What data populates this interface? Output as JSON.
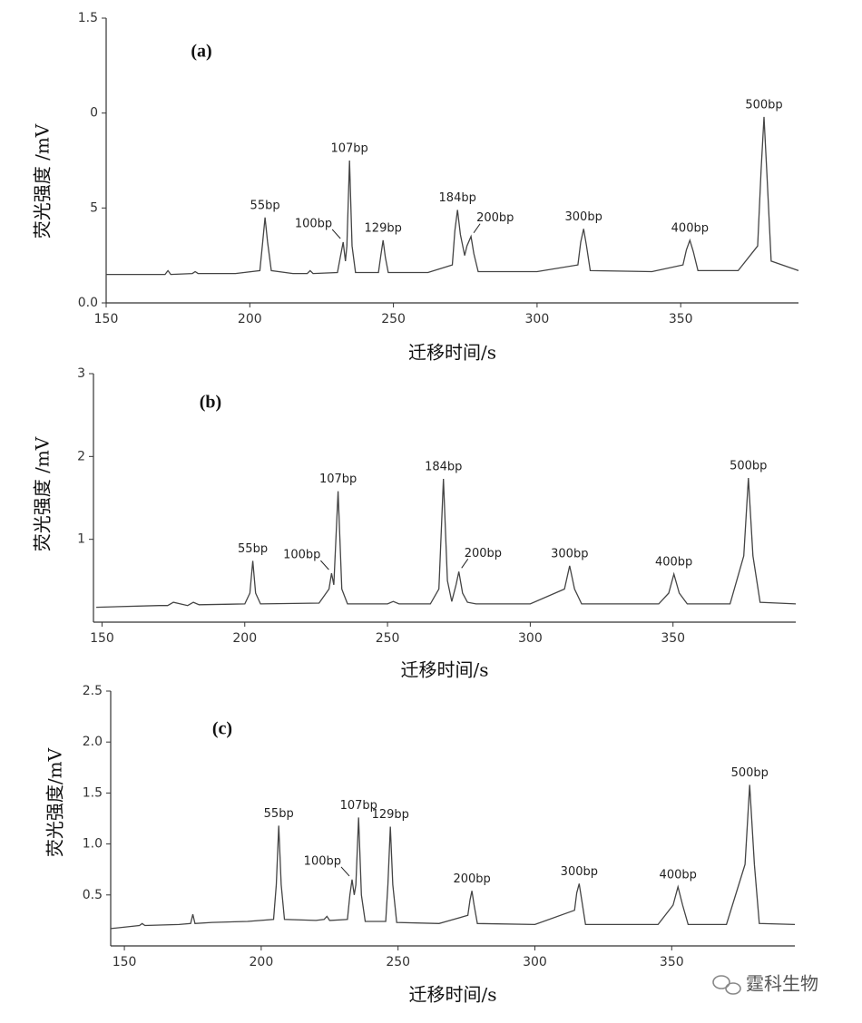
{
  "chart_data": [
    {
      "type": "line",
      "panel": "(a)",
      "y_label": "荧光强度 /mV",
      "x_label": "迁移时间/s",
      "color": "#444444",
      "xlim": [
        150,
        391
      ],
      "ylim": [
        0,
        1.5
      ],
      "xticks": [
        150,
        200,
        250,
        300,
        350
      ],
      "yticks": [
        1.5,
        {
          "value": 1.0,
          "label": "0"
        },
        {
          "value": 0.5,
          "label": "5"
        },
        {
          "value": 0,
          "label": "0.0"
        }
      ],
      "x": [
        150,
        165,
        170.5,
        171.5,
        172.5,
        180,
        181,
        182,
        195,
        203.5,
        204.5,
        205.3,
        206.2,
        207.5,
        215,
        220,
        221,
        222,
        230.5,
        231.5,
        232.5,
        233.3,
        233.8,
        234.7,
        235.6,
        236.8,
        244.8,
        245.6,
        246.4,
        247.2,
        248.2,
        262,
        270.5,
        271.4,
        272.3,
        273.3,
        274.8,
        275.6,
        277,
        278,
        279.5,
        300,
        314.2,
        315.2,
        316.2,
        317.2,
        318.5,
        340,
        350.8,
        352,
        353.2,
        354.4,
        356,
        370,
        376.8,
        378,
        379,
        380,
        381.5,
        391
      ],
      "values": [
        0.15,
        0.15,
        0.15,
        0.17,
        0.15,
        0.155,
        0.165,
        0.155,
        0.155,
        0.17,
        0.32,
        0.45,
        0.32,
        0.17,
        0.155,
        0.155,
        0.17,
        0.155,
        0.16,
        0.24,
        0.32,
        0.22,
        0.3,
        0.75,
        0.3,
        0.16,
        0.16,
        0.25,
        0.33,
        0.24,
        0.16,
        0.16,
        0.2,
        0.38,
        0.49,
        0.36,
        0.25,
        0.3,
        0.35,
        0.26,
        0.165,
        0.165,
        0.2,
        0.32,
        0.39,
        0.3,
        0.17,
        0.165,
        0.2,
        0.28,
        0.33,
        0.27,
        0.17,
        0.17,
        0.3,
        0.7,
        0.98,
        0.68,
        0.22,
        0.17
      ],
      "annotations": [
        {
          "text": "55bp",
          "x": 205.3,
          "y": 0.45
        },
        {
          "text": "100bp",
          "x": 232.5,
          "y": 0.32,
          "arrow": "left"
        },
        {
          "text": "107bp",
          "x": 234.7,
          "y": 0.75
        },
        {
          "text": "129bp",
          "x": 246.4,
          "y": 0.33
        },
        {
          "text": "184bp",
          "x": 272.3,
          "y": 0.49
        },
        {
          "text": "200bp",
          "x": 277,
          "y": 0.35,
          "arrow": "right"
        },
        {
          "text": "300bp",
          "x": 316.2,
          "y": 0.39
        },
        {
          "text": "400bp",
          "x": 353.2,
          "y": 0.33
        },
        {
          "text": "500bp",
          "x": 379,
          "y": 0.98
        }
      ]
    },
    {
      "type": "line",
      "panel": "(b)",
      "y_label": "荧光强度 /mV",
      "x_label": "迁移时间/s",
      "color": "#444444",
      "xlim": [
        147,
        393
      ],
      "ylim": [
        0,
        3
      ],
      "xticks": [
        150,
        200,
        250,
        300,
        350
      ],
      "yticks": [
        1,
        2,
        3
      ],
      "x": [
        148,
        170,
        173,
        175,
        180,
        182,
        184,
        200,
        201.8,
        202.8,
        203.8,
        205.5,
        226,
        229.5,
        230.4,
        231.2,
        232.7,
        234,
        236,
        250,
        252,
        254,
        265,
        268,
        269.6,
        271,
        272.5,
        274,
        275,
        276.3,
        278,
        281,
        300,
        312,
        313.8,
        315.5,
        318,
        345,
        348.5,
        350.3,
        352.2,
        355,
        370,
        374.8,
        376.4,
        378,
        380.5,
        393
      ],
      "values": [
        0.18,
        0.2,
        0.2,
        0.24,
        0.2,
        0.24,
        0.21,
        0.22,
        0.35,
        0.74,
        0.35,
        0.22,
        0.23,
        0.4,
        0.59,
        0.45,
        1.58,
        0.4,
        0.22,
        0.22,
        0.25,
        0.22,
        0.22,
        0.4,
        1.73,
        0.5,
        0.25,
        0.45,
        0.61,
        0.35,
        0.24,
        0.22,
        0.22,
        0.4,
        0.68,
        0.4,
        0.22,
        0.22,
        0.35,
        0.58,
        0.35,
        0.22,
        0.22,
        0.8,
        1.74,
        0.8,
        0.24,
        0.22
      ],
      "annotations": [
        {
          "text": "55bp",
          "x": 202.8,
          "y": 0.74
        },
        {
          "text": "100bp",
          "x": 230.4,
          "y": 0.59,
          "arrow": "left"
        },
        {
          "text": "107bp",
          "x": 232.7,
          "y": 1.58
        },
        {
          "text": "184bp",
          "x": 269.6,
          "y": 1.73
        },
        {
          "text": "200bp",
          "x": 275,
          "y": 0.61,
          "arrow": "right"
        },
        {
          "text": "300bp",
          "x": 313.8,
          "y": 0.68
        },
        {
          "text": "400bp",
          "x": 350.3,
          "y": 0.58
        },
        {
          "text": "500bp",
          "x": 376.4,
          "y": 1.74
        }
      ]
    },
    {
      "type": "line",
      "panel": "(c)",
      "y_label": "荧光强度/mV",
      "x_label": "迁移时间/s",
      "color": "#444444",
      "xlim": [
        145,
        395
      ],
      "ylim": [
        0,
        2.5
      ],
      "xticks": [
        150,
        200,
        250,
        300,
        350
      ],
      "yticks": [
        2.5,
        {
          "value": 2,
          "label": "2.0"
        },
        1.5,
        {
          "value": 1,
          "label": "1.0"
        },
        0.5
      ],
      "x": [
        145,
        155.5,
        156.5,
        157.5,
        170,
        174.2,
        175,
        175.8,
        182,
        195,
        204.5,
        205.5,
        206.4,
        207.3,
        208.5,
        220,
        223,
        224,
        225,
        231.5,
        232.4,
        233.2,
        234,
        234.6,
        235.6,
        236.6,
        238,
        245.5,
        246.3,
        247.2,
        248.1,
        249.5,
        265,
        275.5,
        276.3,
        277,
        277.8,
        279,
        300,
        314.5,
        315.3,
        316.2,
        317.1,
        318.5,
        345,
        350.5,
        352.3,
        354,
        356,
        370,
        376.8,
        378.5,
        380.2,
        382,
        395
      ],
      "values": [
        0.17,
        0.2,
        0.22,
        0.2,
        0.21,
        0.22,
        0.31,
        0.22,
        0.23,
        0.24,
        0.26,
        0.6,
        1.18,
        0.6,
        0.26,
        0.25,
        0.26,
        0.29,
        0.25,
        0.26,
        0.5,
        0.65,
        0.5,
        0.6,
        1.26,
        0.5,
        0.24,
        0.24,
        0.6,
        1.17,
        0.6,
        0.23,
        0.22,
        0.3,
        0.45,
        0.54,
        0.4,
        0.22,
        0.21,
        0.35,
        0.52,
        0.61,
        0.45,
        0.21,
        0.21,
        0.4,
        0.58,
        0.4,
        0.21,
        0.21,
        0.8,
        1.58,
        0.8,
        0.22,
        0.21
      ],
      "annotations": [
        {
          "text": "55bp",
          "x": 206.4,
          "y": 1.18
        },
        {
          "text": "100bp",
          "x": 233.2,
          "y": 0.65,
          "arrow": "left"
        },
        {
          "text": "107bp",
          "x": 235.6,
          "y": 1.26
        },
        {
          "text": "129bp",
          "x": 247.2,
          "y": 1.17
        },
        {
          "text": "200bp",
          "x": 277,
          "y": 0.54
        },
        {
          "text": "300bp",
          "x": 316.2,
          "y": 0.61
        },
        {
          "text": "400bp",
          "x": 352.3,
          "y": 0.58
        },
        {
          "text": "500bp",
          "x": 378.5,
          "y": 1.58
        }
      ]
    }
  ],
  "watermark": "霆科生物"
}
